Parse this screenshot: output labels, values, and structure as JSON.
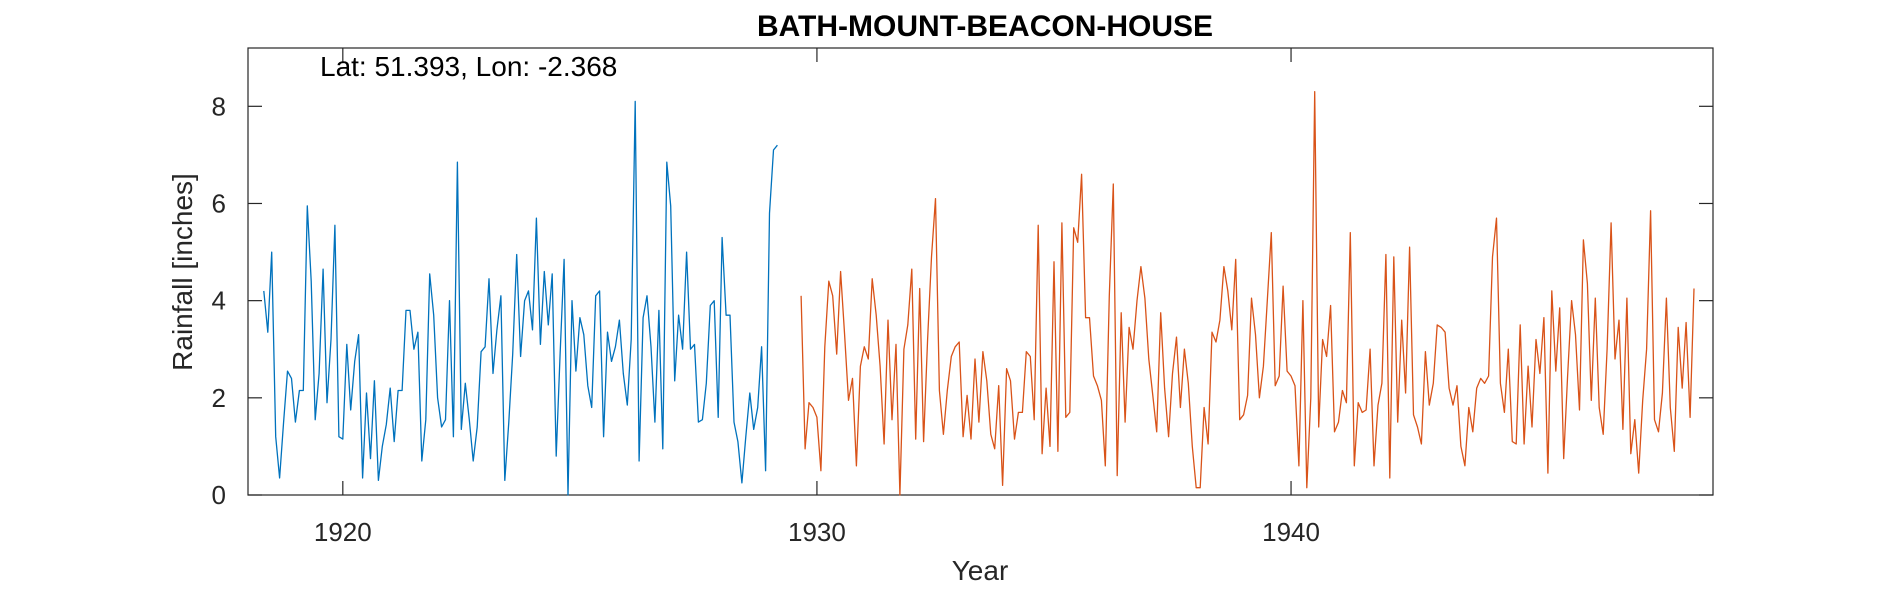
{
  "chart_data": {
    "type": "line",
    "title": "BATH-MOUNT-BEACON-HOUSE",
    "annotation": "Lat: 51.393, Lon: -2.368",
    "xlabel": "Year",
    "ylabel": "Rainfall [inches]",
    "xlim": [
      1918.0,
      1948.9
    ],
    "ylim": [
      0,
      9.2
    ],
    "xticks": [
      1920,
      1930,
      1940
    ],
    "xtick_labels": [
      "1920",
      "1930",
      "1940"
    ],
    "yticks": [
      0,
      2,
      4,
      6,
      8
    ],
    "ytick_labels": [
      "0",
      "2",
      "4",
      "6",
      "8"
    ],
    "grid": false,
    "legend": "none",
    "series": [
      {
        "color": "#0072BD",
        "x_start": "1918-05",
        "values": [
          4.2,
          3.35,
          5.0,
          1.2,
          0.35,
          1.5,
          2.55,
          2.4,
          1.5,
          2.15,
          2.15,
          5.95,
          4.4,
          1.55,
          2.5,
          4.65,
          1.9,
          3.2,
          5.55,
          1.2,
          1.15,
          3.1,
          1.75,
          2.75,
          3.3,
          0.35,
          2.1,
          0.75,
          2.35,
          0.3,
          1.0,
          1.45,
          2.2,
          1.1,
          2.15,
          2.15,
          3.8,
          3.8,
          3.0,
          3.35,
          0.7,
          1.55,
          4.55,
          3.7,
          2.0,
          1.4,
          1.55,
          4.0,
          1.2,
          6.85,
          1.35,
          2.3,
          1.55,
          0.7,
          1.4,
          2.95,
          3.05,
          4.45,
          2.5,
          3.4,
          4.1,
          0.3,
          1.5,
          2.9,
          4.95,
          2.85,
          4.0,
          4.2,
          3.4,
          5.7,
          3.1,
          4.6,
          3.5,
          4.55,
          0.8,
          2.9,
          4.85,
          0.0,
          4.0,
          2.55,
          3.65,
          3.3,
          2.25,
          1.8,
          4.1,
          4.2,
          1.2,
          3.35,
          2.75,
          3.05,
          3.6,
          2.5,
          1.85,
          3.2,
          8.1,
          0.7,
          3.65,
          4.1,
          3.05,
          1.5,
          3.8,
          0.95,
          6.85,
          5.95,
          2.35,
          3.7,
          3.0,
          5.0,
          3.0,
          3.1,
          1.5,
          1.55,
          2.3,
          3.9,
          4.0,
          1.6,
          5.3,
          3.7,
          3.7,
          1.5,
          1.1,
          0.25,
          1.2,
          2.1,
          1.35,
          1.8,
          3.05,
          0.5,
          5.8,
          7.1,
          7.2
        ]
      },
      {
        "color": "#D95319",
        "x_start": "1929-09",
        "values": [
          4.1,
          0.95,
          1.9,
          1.8,
          1.6,
          0.5,
          3.05,
          4.4,
          4.1,
          2.9,
          4.6,
          3.3,
          1.95,
          2.4,
          0.6,
          2.65,
          3.05,
          2.8,
          4.45,
          3.7,
          2.65,
          1.05,
          3.6,
          1.55,
          3.1,
          0.0,
          3.0,
          3.5,
          4.65,
          1.15,
          4.25,
          1.1,
          3.2,
          4.9,
          6.1,
          2.15,
          1.25,
          2.15,
          2.85,
          3.05,
          3.15,
          1.2,
          2.05,
          1.15,
          2.8,
          1.5,
          2.95,
          2.35,
          1.25,
          0.95,
          2.25,
          0.2,
          2.6,
          2.35,
          1.15,
          1.7,
          1.7,
          2.95,
          2.85,
          1.55,
          5.55,
          0.85,
          2.2,
          1.0,
          4.8,
          0.9,
          5.6,
          1.6,
          1.7,
          5.5,
          5.2,
          6.6,
          3.65,
          3.65,
          2.45,
          2.25,
          1.95,
          0.6,
          4.1,
          6.4,
          0.4,
          3.75,
          1.5,
          3.45,
          3.0,
          4.0,
          4.7,
          4.05,
          2.8,
          2.05,
          1.3,
          3.75,
          2.2,
          1.2,
          2.5,
          3.25,
          1.8,
          3.0,
          2.3,
          1.0,
          0.15,
          0.15,
          1.8,
          1.05,
          3.35,
          3.15,
          3.6,
          4.7,
          4.2,
          3.4,
          4.85,
          1.55,
          1.65,
          2.05,
          4.05,
          3.3,
          2.0,
          2.65,
          4.0,
          5.4,
          2.25,
          2.45,
          4.3,
          2.55,
          2.45,
          2.25,
          0.6,
          4.0,
          0.15,
          2.0,
          8.3,
          1.4,
          3.2,
          2.85,
          3.9,
          1.3,
          1.5,
          2.15,
          1.9,
          5.4,
          0.6,
          1.9,
          1.7,
          1.75,
          3.0,
          0.6,
          1.85,
          2.3,
          4.95,
          0.35,
          4.9,
          1.5,
          3.6,
          2.1,
          5.1,
          1.65,
          1.4,
          1.05,
          2.95,
          1.85,
          2.3,
          3.5,
          3.45,
          3.35,
          2.2,
          1.85,
          2.25,
          1.0,
          0.6,
          1.8,
          1.3,
          2.2,
          2.4,
          2.3,
          2.45,
          4.9,
          5.7,
          2.3,
          1.7,
          3.0,
          1.1,
          1.05,
          3.5,
          1.05,
          2.65,
          1.4,
          3.2,
          2.5,
          3.65,
          0.45,
          4.2,
          2.55,
          3.85,
          0.75,
          2.45,
          4.0,
          3.3,
          1.75,
          5.25,
          4.35,
          1.95,
          4.05,
          1.8,
          1.25,
          3.0,
          5.6,
          2.8,
          3.6,
          1.35,
          4.05,
          0.85,
          1.55,
          0.45,
          1.95,
          3.0,
          5.85,
          1.55,
          1.3,
          2.1,
          4.05,
          1.8,
          0.9,
          3.45,
          2.2,
          3.55,
          1.6,
          4.25
        ]
      }
    ]
  }
}
